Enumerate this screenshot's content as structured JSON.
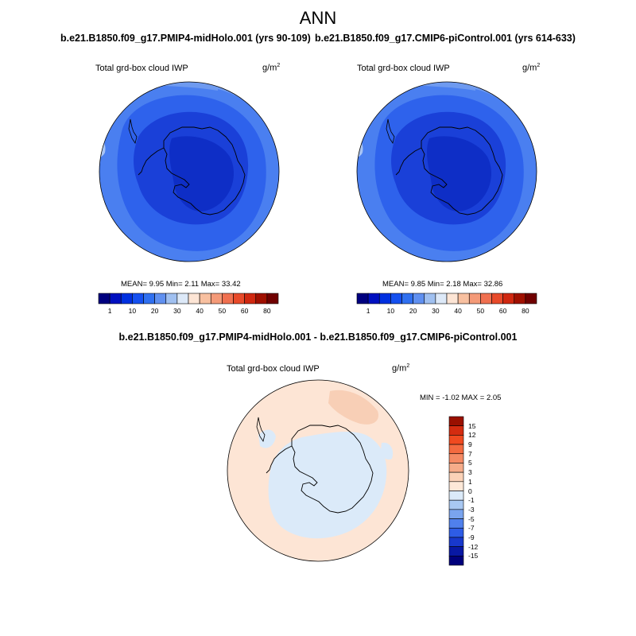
{
  "page": {
    "season_title": "ANN"
  },
  "panels": [
    {
      "case_title": "b.e21.B1850.f09_g17.PMIP4-midHolo.001 (yrs 90-109)",
      "variable": "Total grd-box cloud IWP",
      "units": "g/m",
      "units_exp": "2",
      "stats": {
        "mean_label": "MEAN=",
        "mean": "9.95",
        "min_label": "Min=",
        "min": "2.11",
        "max_label": "Max=",
        "max": "33.42"
      }
    },
    {
      "case_title": "b.e21.B1850.f09_g17.CMIP6-piControl.001 (yrs 614-633)",
      "variable": "Total grd-box cloud IWP",
      "units": "g/m",
      "units_exp": "2",
      "stats": {
        "mean_label": "MEAN=",
        "mean": "9.85",
        "min_label": "Min=",
        "min": "2.18",
        "max_label": "Max=",
        "max": "32.86"
      }
    }
  ],
  "diff_panel": {
    "title": "b.e21.B1850.f09_g17.PMIP4-midHolo.001 - b.e21.B1850.f09_g17.CMIP6-piControl.001",
    "variable": "Total grd-box cloud IWP",
    "units": "g/m",
    "units_exp": "2",
    "stats": {
      "min_label": "MIN =",
      "min": "-1.02",
      "max_label": "MAX =",
      "max": "2.05"
    }
  },
  "colorbar_abs": {
    "ticks": [
      "1",
      "10",
      "20",
      "30",
      "40",
      "50",
      "60",
      "80"
    ],
    "colors": [
      "#00007f",
      "#0010c0",
      "#0030e0",
      "#1550f0",
      "#3070f0",
      "#6090f0",
      "#a0c0f0",
      "#dde9f8",
      "#fde5d5",
      "#f8c0a0",
      "#f49a78",
      "#f07050",
      "#e84a2a",
      "#d02810",
      "#a01000",
      "#700000"
    ]
  },
  "colorbar_diff": {
    "ticks": [
      "15",
      "12",
      "9",
      "7",
      "5",
      "3",
      "1",
      "0",
      "-1",
      "-3",
      "-5",
      "-7",
      "-9",
      "-12",
      "-15"
    ],
    "colors": [
      "#9a1000",
      "#d42c10",
      "#f04a20",
      "#f46a40",
      "#f58a64",
      "#f6ac8a",
      "#fbd2b8",
      "#fde8d8",
      "#dbeaf9",
      "#a8c8f2",
      "#7aa4ee",
      "#5080ec",
      "#2e5ce6",
      "#1838cc",
      "#0818a4",
      "#00007c"
    ]
  },
  "map_colors": {
    "ocean_light": "#4a7ff0",
    "ocean_mid": "#2e62ec",
    "band_pale": "#6e9af0",
    "pale_spot": "#a8c4f4",
    "ice_dark": "#1a40d8",
    "core_darkest": "#0e2ec6",
    "diff_pos": "#fde5d5",
    "diff_pos_strong": "#f8cfb6",
    "diff_neg": "#dbeaf9"
  }
}
